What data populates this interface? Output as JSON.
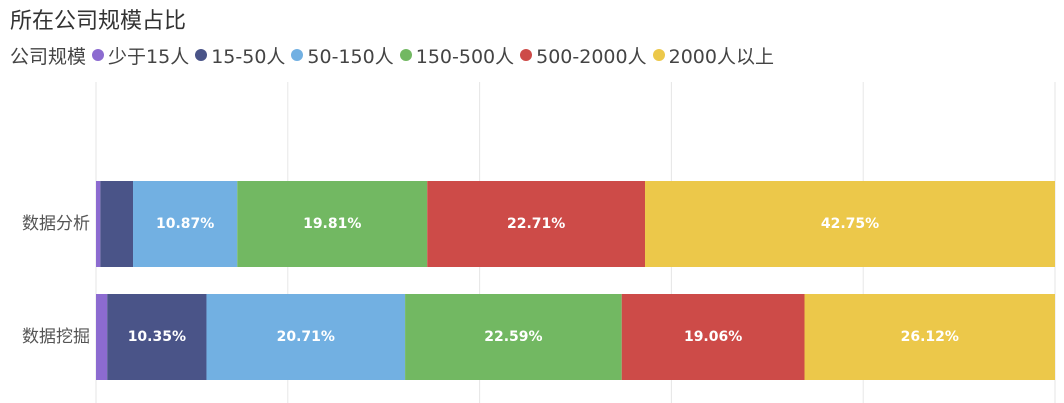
{
  "chart_data": {
    "type": "bar",
    "orientation": "horizontal",
    "stacked": "percent",
    "title": "所在公司规模占比",
    "legend_title": "公司规模",
    "legend_position": "top-left",
    "grid": true,
    "xlim": [
      0,
      100
    ],
    "categories": [
      "数据分析",
      "数据挖掘"
    ],
    "series": [
      {
        "name": "少于15人",
        "color": "#8c6bd0",
        "values": [
          0.45,
          1.17
        ],
        "labels": [
          "",
          ""
        ]
      },
      {
        "name": "15-50人",
        "color": "#4a5488",
        "values": [
          3.41,
          10.35
        ],
        "labels": [
          "",
          "10.35%"
        ]
      },
      {
        "name": "50-150人",
        "color": "#72b0e2",
        "values": [
          10.87,
          20.71
        ],
        "labels": [
          "10.87%",
          "20.71%"
        ]
      },
      {
        "name": "150-500人",
        "color": "#72b862",
        "values": [
          19.81,
          22.59
        ],
        "labels": [
          "19.81%",
          "22.59%"
        ]
      },
      {
        "name": "500-2000人",
        "color": "#cd4b48",
        "values": [
          22.71,
          19.06
        ],
        "labels": [
          "22.71%",
          "19.06%"
        ]
      },
      {
        "name": "2000人以上",
        "color": "#ecc84a",
        "values": [
          42.75,
          26.12
        ],
        "labels": [
          "42.75%",
          "26.12%"
        ]
      }
    ]
  }
}
